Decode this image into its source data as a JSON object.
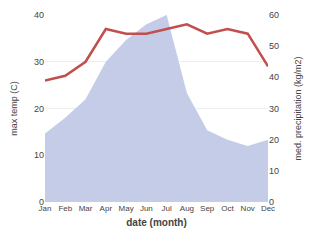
{
  "chart_data": {
    "type": "line",
    "categories": [
      "Jan",
      "Feb",
      "Mar",
      "Apr",
      "May",
      "Jun",
      "Jul",
      "Aug",
      "Sep",
      "Oct",
      "Nov",
      "Dec"
    ],
    "xlabel": "date (month)",
    "ylabel": "max temp (C)",
    "y2label": "med. precipitation (kg/m2)",
    "ylim": [
      0,
      40
    ],
    "yticks": [
      0,
      10,
      20,
      30,
      40
    ],
    "y2lim": [
      0,
      60
    ],
    "y2ticks": [
      0,
      10,
      20,
      30,
      40,
      50,
      60
    ],
    "grid": true,
    "series": [
      {
        "type": "area",
        "color": "#c5cce8",
        "axis": "y2",
        "values": [
          22,
          27,
          33,
          45,
          52,
          57,
          60,
          35,
          23,
          20,
          18,
          20
        ]
      },
      {
        "type": "line",
        "color": "#c0504d",
        "values": [
          26,
          27,
          30,
          37,
          36,
          36,
          37,
          38,
          36,
          37,
          36,
          29
        ]
      }
    ]
  }
}
